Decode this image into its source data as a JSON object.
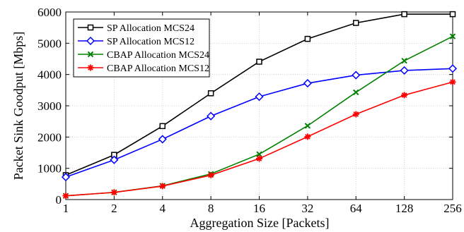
{
  "chart_data": {
    "type": "line",
    "xlabel": "Aggregation Size [Packets]",
    "ylabel": "Packet Sink Goodput [Mbps]",
    "x": [
      1,
      2,
      4,
      8,
      16,
      32,
      64,
      128,
      256
    ],
    "x_tick_labels": [
      "1",
      "2",
      "4",
      "8",
      "16",
      "32",
      "64",
      "128",
      "256"
    ],
    "x_scale": "log2",
    "ylim": [
      0,
      6000
    ],
    "y_ticks": [
      0,
      1000,
      2000,
      3000,
      4000,
      5000,
      6000
    ],
    "y_tick_labels": [
      "0",
      "1000",
      "2000",
      "3000",
      "4000",
      "5000",
      "6000"
    ],
    "grid": true,
    "legend_position": "top-left",
    "series": [
      {
        "name": "SP Allocation MCS24",
        "color": "#000000",
        "marker": "square",
        "values": [
          780,
          1430,
          2350,
          3400,
          4410,
          5140,
          5650,
          5930,
          5930
        ]
      },
      {
        "name": "SP Allocation MCS12",
        "color": "#0000ff",
        "marker": "diamond",
        "values": [
          720,
          1270,
          1930,
          2670,
          3290,
          3720,
          3980,
          4130,
          4190
        ]
      },
      {
        "name": "CBAP Allocation MCS24",
        "color": "#008000",
        "marker": "x",
        "values": [
          120,
          230,
          440,
          820,
          1450,
          2360,
          3430,
          4440,
          5220
        ]
      },
      {
        "name": "CBAP Allocation MCS12",
        "color": "#ff0000",
        "marker": "star",
        "values": [
          120,
          230,
          430,
          780,
          1310,
          2010,
          2730,
          3340,
          3760
        ]
      }
    ]
  }
}
